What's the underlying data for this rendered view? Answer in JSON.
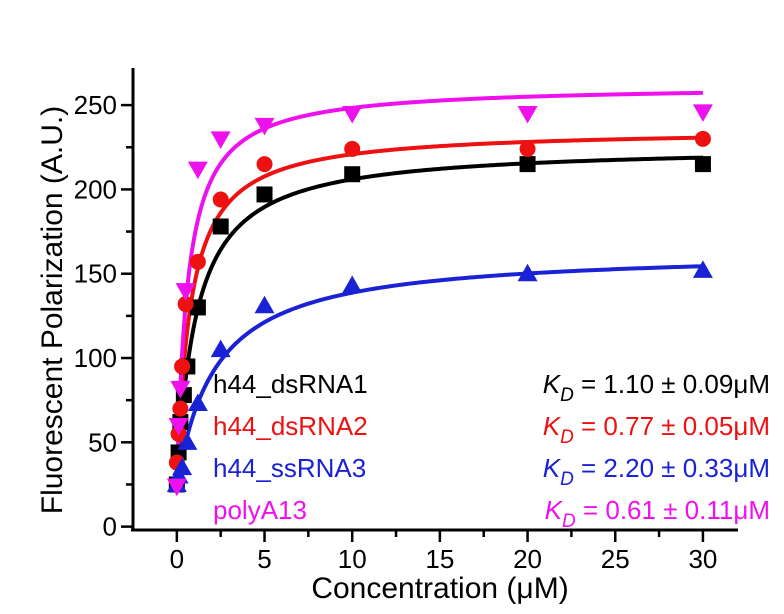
{
  "chart_data": {
    "type": "scatter",
    "xlabel": "Concentration (μM)",
    "ylabel": "Fluorescent Polarization (A.U.)",
    "xlim": [
      -2.5,
      32
    ],
    "ylim": [
      -2,
      272
    ],
    "xticks": [
      0,
      5,
      10,
      15,
      20,
      25,
      30
    ],
    "yticks": [
      0,
      50,
      100,
      150,
      200,
      250
    ],
    "grid": false,
    "legend_placement": "bottom",
    "series": [
      {
        "name": "h44_dsRNA1",
        "color": "#000000",
        "marker": "square",
        "x": [
          0,
          0.1,
          0.2,
          0.4,
          0.6,
          1.2,
          2.5,
          5,
          10,
          20,
          30
        ],
        "y": [
          25,
          44,
          62,
          78,
          95,
          130,
          178,
          197,
          209,
          215,
          215
        ],
        "fit": {
          "bmax": 226,
          "kd": 1.1,
          "base": 24
        },
        "kd_text": "1.10 ± 0.09μM"
      },
      {
        "name": "h44_dsRNA2",
        "color": "#ee1111",
        "marker": "circle",
        "x": [
          0,
          0.1,
          0.2,
          0.3,
          0.5,
          1.2,
          2.5,
          5,
          10,
          20,
          30
        ],
        "y": [
          38,
          55,
          70,
          95,
          132,
          157,
          194,
          215,
          224,
          224,
          230
        ],
        "fit": {
          "bmax": 236,
          "kd": 0.77,
          "base": 24
        },
        "kd_text": "0.77 ± 0.05μM"
      },
      {
        "name": "h44_ssRNA3",
        "color": "#1a22d6",
        "marker": "triangle-up",
        "x": [
          0,
          0.1,
          0.3,
          0.6,
          1.2,
          2.5,
          5,
          10,
          20,
          30
        ],
        "y": [
          25,
          30,
          35,
          50,
          73,
          105,
          131,
          143,
          150,
          152
        ],
        "fit": {
          "bmax": 164,
          "kd": 2.2,
          "base": 24
        },
        "kd_text": "2.20 ± 0.33μM"
      },
      {
        "name": "polyA13",
        "color": "#ee11ee",
        "marker": "triangle-down",
        "x": [
          0,
          0.1,
          0.2,
          0.5,
          1.2,
          2.5,
          5,
          10,
          20,
          30
        ],
        "y": [
          24,
          60,
          82,
          140,
          212,
          230,
          238,
          245,
          245,
          246
        ],
        "fit": {
          "bmax": 262,
          "kd": 0.61,
          "base": 24
        },
        "kd_text": "0.61 ± 0.11μM"
      }
    ],
    "kd_symbol": "K",
    "kd_subscript": "D",
    "kd_equals": " = "
  }
}
